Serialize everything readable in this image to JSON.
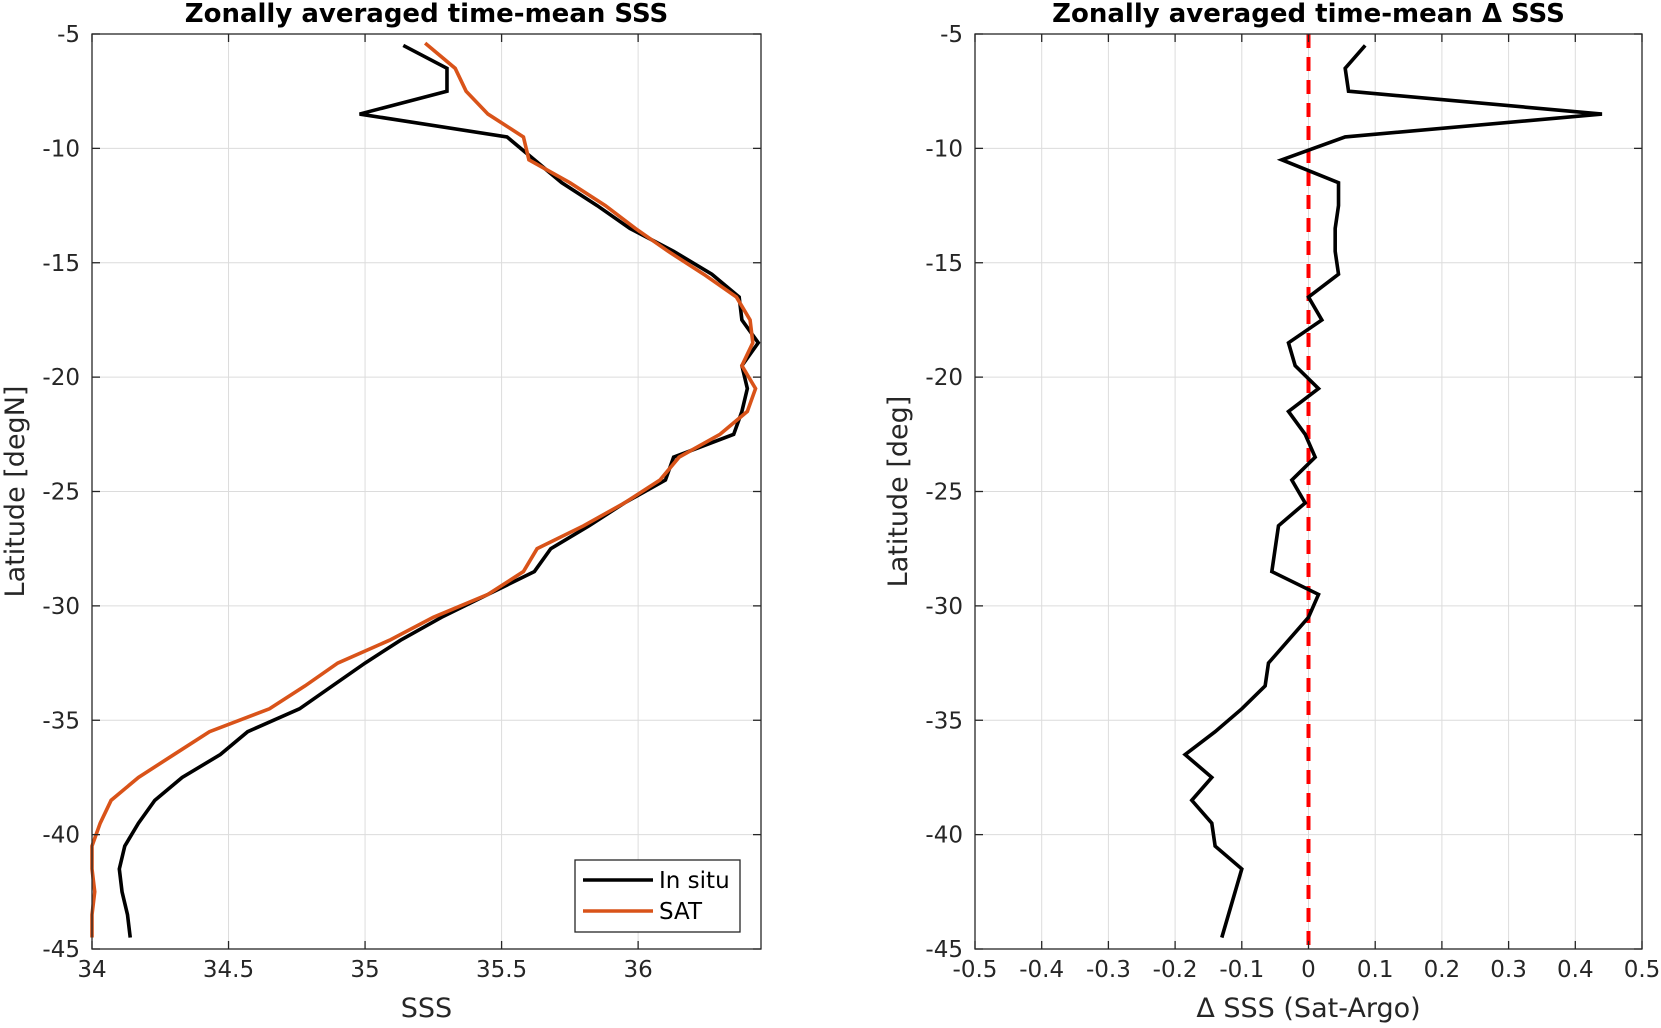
{
  "chart_data": [
    {
      "type": "line",
      "title": "Zonally averaged time-mean SSS",
      "xlabel": "SSS",
      "ylabel": "Latitude [degN]",
      "xlim": [
        34,
        36.45
      ],
      "ylim": [
        -45,
        -5
      ],
      "xticks": [
        34,
        34.5,
        35,
        35.5,
        36
      ],
      "xtick_labels": [
        "34",
        "34.5",
        "35",
        "35.5",
        "36"
      ],
      "yticks": [
        -5,
        -10,
        -15,
        -20,
        -25,
        -30,
        -35,
        -40,
        -45
      ],
      "ytick_labels": [
        "-5",
        "-10",
        "-15",
        "-20",
        "-25",
        "-30",
        "-35",
        "-40",
        "-45"
      ],
      "grid": true,
      "legend": "bottom-right",
      "series": [
        {
          "name": "In situ",
          "color": "#000000",
          "points": [
            [
              35.14,
              -5.5
            ],
            [
              35.3,
              -6.5
            ],
            [
              35.3,
              -7.5
            ],
            [
              34.98,
              -8.5
            ],
            [
              35.52,
              -9.5
            ],
            [
              35.62,
              -10.5
            ],
            [
              35.72,
              -11.5
            ],
            [
              35.85,
              -12.5
            ],
            [
              35.97,
              -13.5
            ],
            [
              36.13,
              -14.5
            ],
            [
              36.27,
              -15.5
            ],
            [
              36.37,
              -16.5
            ],
            [
              36.38,
              -17.5
            ],
            [
              36.44,
              -18.5
            ],
            [
              36.38,
              -19.5
            ],
            [
              36.4,
              -20.5
            ],
            [
              36.38,
              -21.5
            ],
            [
              36.35,
              -22.5
            ],
            [
              36.13,
              -23.5
            ],
            [
              36.1,
              -24.5
            ],
            [
              35.95,
              -25.5
            ],
            [
              35.82,
              -26.5
            ],
            [
              35.68,
              -27.5
            ],
            [
              35.62,
              -28.5
            ],
            [
              35.45,
              -29.5
            ],
            [
              35.28,
              -30.5
            ],
            [
              35.13,
              -31.5
            ],
            [
              35.0,
              -32.5
            ],
            [
              34.88,
              -33.5
            ],
            [
              34.76,
              -34.5
            ],
            [
              34.57,
              -35.5
            ],
            [
              34.47,
              -36.5
            ],
            [
              34.33,
              -37.5
            ],
            [
              34.23,
              -38.5
            ],
            [
              34.17,
              -39.5
            ],
            [
              34.12,
              -40.5
            ],
            [
              34.1,
              -41.5
            ],
            [
              34.11,
              -42.5
            ],
            [
              34.13,
              -43.5
            ],
            [
              34.14,
              -44.5
            ]
          ]
        },
        {
          "name": "SAT",
          "color": "#d95319",
          "points": [
            [
              35.22,
              -5.4
            ],
            [
              35.33,
              -6.5
            ],
            [
              35.37,
              -7.5
            ],
            [
              35.45,
              -8.5
            ],
            [
              35.58,
              -9.5
            ],
            [
              35.6,
              -10.5
            ],
            [
              35.75,
              -11.5
            ],
            [
              35.88,
              -12.5
            ],
            [
              35.99,
              -13.5
            ],
            [
              36.11,
              -14.5
            ],
            [
              36.24,
              -15.5
            ],
            [
              36.36,
              -16.5
            ],
            [
              36.41,
              -17.5
            ],
            [
              36.42,
              -18.5
            ],
            [
              36.38,
              -19.5
            ],
            [
              36.43,
              -20.5
            ],
            [
              36.4,
              -21.5
            ],
            [
              36.3,
              -22.5
            ],
            [
              36.15,
              -23.5
            ],
            [
              36.08,
              -24.5
            ],
            [
              35.95,
              -25.5
            ],
            [
              35.8,
              -26.5
            ],
            [
              35.63,
              -27.5
            ],
            [
              35.58,
              -28.5
            ],
            [
              35.45,
              -29.5
            ],
            [
              35.25,
              -30.5
            ],
            [
              35.09,
              -31.5
            ],
            [
              34.9,
              -32.5
            ],
            [
              34.78,
              -33.5
            ],
            [
              34.65,
              -34.5
            ],
            [
              34.43,
              -35.5
            ],
            [
              34.3,
              -36.5
            ],
            [
              34.17,
              -37.5
            ],
            [
              34.07,
              -38.5
            ],
            [
              34.03,
              -39.5
            ],
            [
              34.0,
              -40.5
            ],
            [
              34.0,
              -41.5
            ],
            [
              34.01,
              -42.5
            ],
            [
              34.0,
              -43.5
            ],
            [
              34.0,
              -44.5
            ]
          ]
        }
      ]
    },
    {
      "type": "line",
      "title": "Zonally averaged time-mean Δ SSS",
      "xlabel": "Δ SSS (Sat-Argo)",
      "ylabel": "Latitude [deg]",
      "xlim": [
        -0.5,
        0.5
      ],
      "ylim": [
        -45,
        -5
      ],
      "xticks": [
        -0.5,
        -0.4,
        -0.3,
        -0.2,
        -0.1,
        0,
        0.1,
        0.2,
        0.3,
        0.4,
        0.5
      ],
      "xtick_labels": [
        "-0.5",
        "-0.4",
        "-0.3",
        "-0.2",
        "-0.1",
        "0",
        "0.1",
        "0.2",
        "0.3",
        "0.4",
        "0.5"
      ],
      "yticks": [
        -5,
        -10,
        -15,
        -20,
        -25,
        -30,
        -35,
        -40,
        -45
      ],
      "ytick_labels": [
        "-5",
        "-10",
        "-15",
        "-20",
        "-25",
        "-30",
        "-35",
        "-40",
        "-45"
      ],
      "grid": true,
      "reference_line": {
        "x": 0,
        "color": "#ff0000",
        "style": "dashed"
      },
      "series": [
        {
          "color": "#000000",
          "points": [
            [
              0.085,
              -5.5
            ],
            [
              0.055,
              -6.5
            ],
            [
              0.06,
              -7.5
            ],
            [
              0.44,
              -8.5
            ],
            [
              0.055,
              -9.5
            ],
            [
              -0.04,
              -10.5
            ],
            [
              0.045,
              -11.5
            ],
            [
              0.045,
              -12.5
            ],
            [
              0.04,
              -13.5
            ],
            [
              0.04,
              -14.5
            ],
            [
              0.045,
              -15.5
            ],
            [
              0.0,
              -16.5
            ],
            [
              0.02,
              -17.5
            ],
            [
              -0.03,
              -18.5
            ],
            [
              -0.02,
              -19.5
            ],
            [
              0.015,
              -20.5
            ],
            [
              -0.03,
              -21.5
            ],
            [
              -0.005,
              -22.5
            ],
            [
              0.01,
              -23.5
            ],
            [
              -0.025,
              -24.5
            ],
            [
              -0.005,
              -25.5
            ],
            [
              -0.045,
              -26.5
            ],
            [
              -0.05,
              -27.5
            ],
            [
              -0.055,
              -28.5
            ],
            [
              0.015,
              -29.5
            ],
            [
              0.0,
              -30.5
            ],
            [
              -0.03,
              -31.5
            ],
            [
              -0.06,
              -32.5
            ],
            [
              -0.065,
              -33.5
            ],
            [
              -0.1,
              -34.5
            ],
            [
              -0.14,
              -35.5
            ],
            [
              -0.185,
              -36.5
            ],
            [
              -0.145,
              -37.5
            ],
            [
              -0.175,
              -38.5
            ],
            [
              -0.145,
              -39.5
            ],
            [
              -0.14,
              -40.5
            ],
            [
              -0.1,
              -41.5
            ],
            [
              -0.11,
              -42.5
            ],
            [
              -0.12,
              -43.5
            ],
            [
              -0.13,
              -44.5
            ]
          ]
        }
      ]
    }
  ]
}
